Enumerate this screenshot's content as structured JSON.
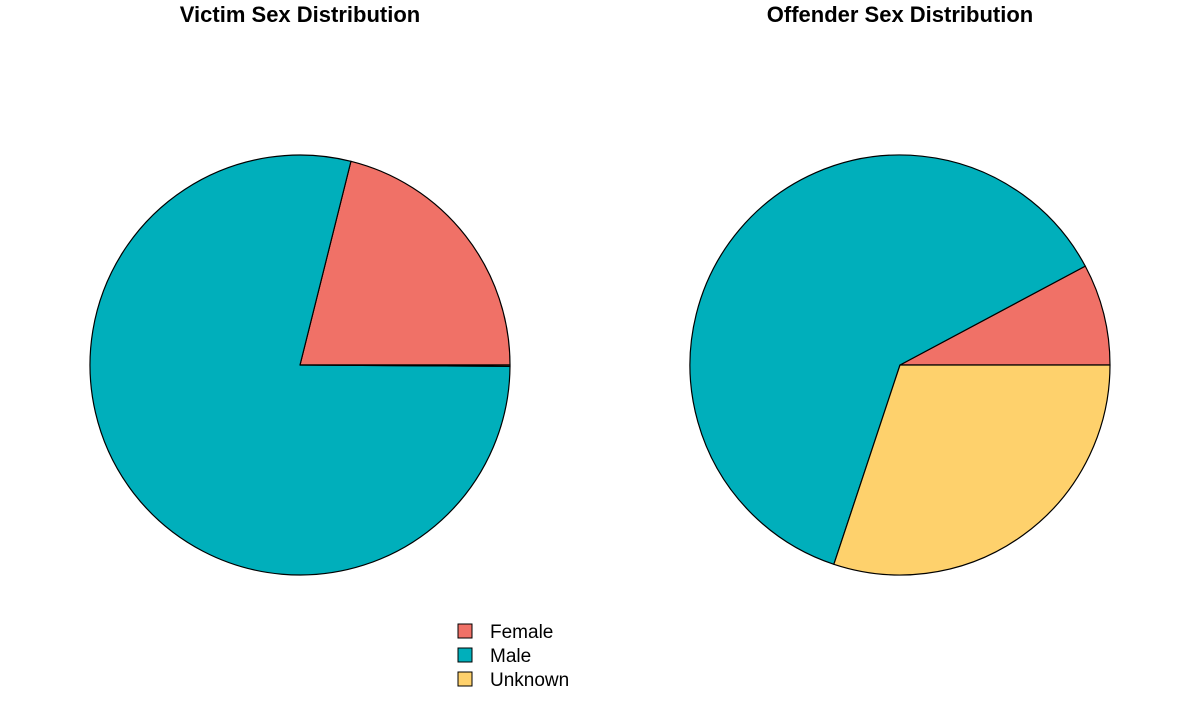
{
  "chart_data": [
    {
      "type": "pie",
      "title": "Victim Sex Distribution",
      "categories": [
        "Female",
        "Male",
        "Unknown"
      ],
      "values": [
        21.1,
        78.8,
        0.1
      ],
      "start_angle": "3 o'clock",
      "direction": "counterclockwise"
    },
    {
      "type": "pie",
      "title": "Offender Sex Distribution",
      "categories": [
        "Female",
        "Male",
        "Unknown"
      ],
      "values": [
        7.8,
        62.1,
        30.1
      ],
      "start_angle": "3 o'clock",
      "direction": "counterclockwise"
    }
  ],
  "legend": {
    "placement": "bottom-center",
    "items": [
      {
        "label": "Female",
        "color": "#F07167"
      },
      {
        "label": "Male",
        "color": "#00AFBB"
      },
      {
        "label": "Unknown",
        "color": "#FED16C"
      }
    ]
  }
}
